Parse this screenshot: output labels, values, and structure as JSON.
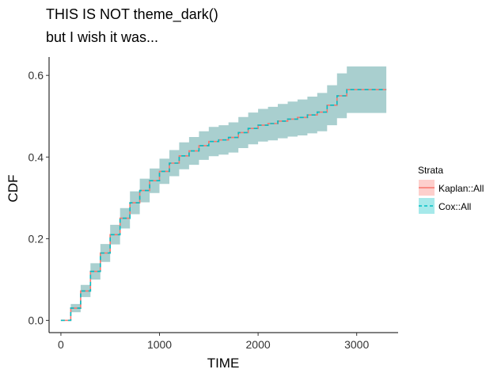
{
  "chart_data": {
    "type": "line",
    "title": "THIS IS NOT theme_dark()",
    "subtitle": "but I wish it was...",
    "xlabel": "TIME",
    "ylabel": "CDF",
    "xlim": [
      -120,
      3420
    ],
    "ylim": [
      -0.03,
      0.645
    ],
    "x_ticks": [
      0,
      1000,
      2000,
      3000
    ],
    "y_ticks": [
      0.0,
      0.2,
      0.4,
      0.6
    ],
    "x_tick_labels": [
      "0",
      "1000",
      "2000",
      "3000"
    ],
    "y_tick_labels": [
      "0.0",
      "0.2",
      "0.4",
      "0.6"
    ],
    "grid": false,
    "legend": {
      "title": "Strata",
      "placement": "right",
      "items": [
        {
          "label": "Kaplan::All",
          "line_color": "#F8766D",
          "fill_color": "#F8766D",
          "dash": "solid"
        },
        {
          "label": "Cox::All",
          "line_color": "#00BFC4",
          "fill_color": "#00BFC4",
          "dash": "dashed"
        }
      ]
    },
    "band_color": "#A9CFCF",
    "series": [
      {
        "name": "Kaplan::All",
        "color": "#F8766D",
        "x": [
          0,
          100,
          200,
          300,
          400,
          500,
          600,
          700,
          800,
          900,
          1000,
          1100,
          1200,
          1300,
          1400,
          1500,
          1600,
          1700,
          1800,
          1900,
          2000,
          2100,
          2200,
          2300,
          2400,
          2500,
          2600,
          2700,
          2800,
          2900,
          3000,
          3100,
          3300
        ],
        "y": [
          0.0,
          0.03,
          0.072,
          0.12,
          0.165,
          0.21,
          0.25,
          0.288,
          0.318,
          0.342,
          0.365,
          0.385,
          0.403,
          0.415,
          0.428,
          0.438,
          0.442,
          0.448,
          0.46,
          0.47,
          0.478,
          0.482,
          0.488,
          0.493,
          0.497,
          0.503,
          0.51,
          0.527,
          0.55,
          0.565,
          0.565,
          0.565,
          0.565
        ],
        "lower": [
          0.0,
          0.02,
          0.057,
          0.1,
          0.143,
          0.186,
          0.225,
          0.26,
          0.289,
          0.312,
          0.334,
          0.353,
          0.37,
          0.381,
          0.393,
          0.402,
          0.406,
          0.411,
          0.422,
          0.431,
          0.438,
          0.441,
          0.446,
          0.45,
          0.453,
          0.458,
          0.463,
          0.478,
          0.495,
          0.508,
          0.508,
          0.508,
          0.508
        ],
        "upper": [
          0.0,
          0.04,
          0.087,
          0.14,
          0.187,
          0.234,
          0.275,
          0.316,
          0.347,
          0.372,
          0.396,
          0.417,
          0.436,
          0.449,
          0.463,
          0.474,
          0.478,
          0.485,
          0.498,
          0.509,
          0.518,
          0.523,
          0.53,
          0.536,
          0.541,
          0.548,
          0.557,
          0.576,
          0.605,
          0.622,
          0.622,
          0.622,
          0.622
        ]
      },
      {
        "name": "Cox::All",
        "color": "#00BFC4",
        "x": [
          0,
          100,
          200,
          300,
          400,
          500,
          600,
          700,
          800,
          900,
          1000,
          1100,
          1200,
          1300,
          1400,
          1500,
          1600,
          1700,
          1800,
          1900,
          2000,
          2100,
          2200,
          2300,
          2400,
          2500,
          2600,
          2700,
          2800,
          2900,
          3000,
          3100,
          3300
        ],
        "y": [
          0.0,
          0.03,
          0.072,
          0.12,
          0.165,
          0.21,
          0.25,
          0.288,
          0.318,
          0.342,
          0.365,
          0.385,
          0.403,
          0.415,
          0.428,
          0.438,
          0.442,
          0.448,
          0.46,
          0.47,
          0.478,
          0.482,
          0.488,
          0.493,
          0.497,
          0.503,
          0.51,
          0.527,
          0.55,
          0.565,
          0.565,
          0.565,
          0.565
        ]
      }
    ]
  }
}
